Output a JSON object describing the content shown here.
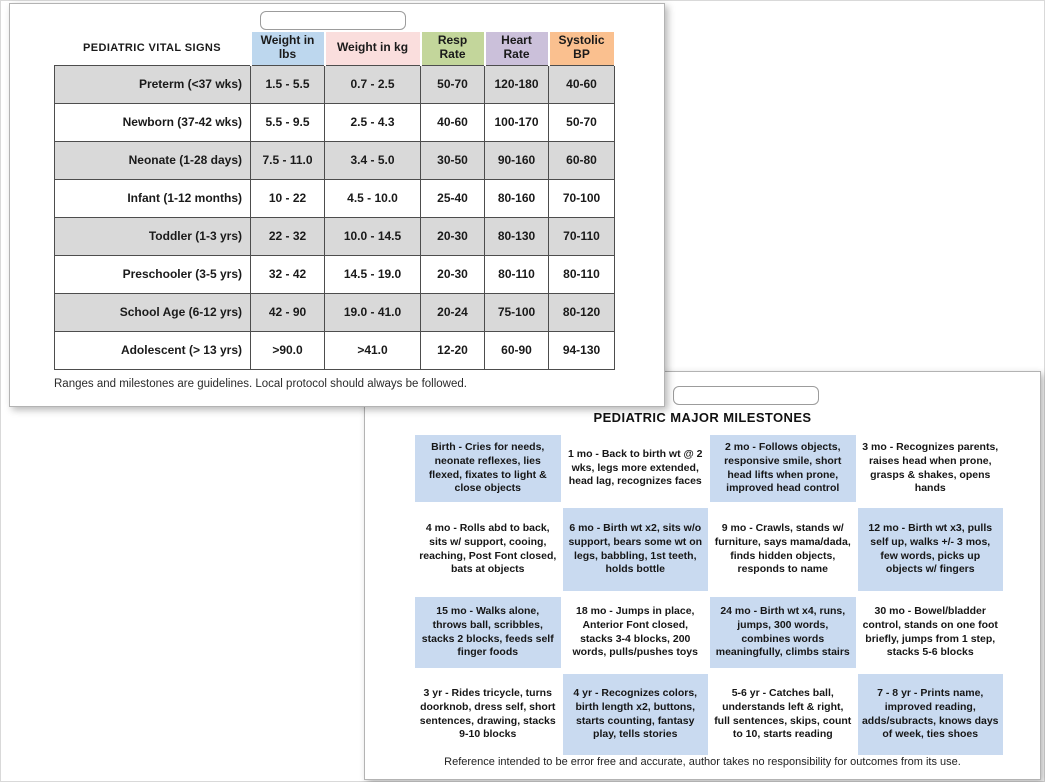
{
  "colors": {
    "header_blue": "#bdd7ee",
    "header_pink": "#fadedd",
    "header_green": "#c3d69b",
    "header_purple": "#cbc0da",
    "header_orange": "#fac08f",
    "row_gray": "#d9d9d9",
    "milestone_blue": "#c9daf0",
    "table_border": "#4d4d4d"
  },
  "vital_signs_card": {
    "field_value": "",
    "table": {
      "title": "PEDIATRIC VITAL SIGNS",
      "columns": [
        {
          "label": "Weight in lbs",
          "color": "#bdd7ee"
        },
        {
          "label": "Weight in kg",
          "color": "#fadedd"
        },
        {
          "label": "Resp Rate",
          "color": "#c3d69b"
        },
        {
          "label": "Heart Rate",
          "color": "#cbc0da"
        },
        {
          "label": "Systolic BP",
          "color": "#fac08f"
        }
      ],
      "rows": [
        {
          "label": "Preterm (<37 wks)",
          "shaded": true,
          "values": [
            "1.5 - 5.5",
            "0.7 - 2.5",
            "50-70",
            "120-180",
            "40-60"
          ]
        },
        {
          "label": "Newborn (37-42 wks)",
          "shaded": false,
          "values": [
            "5.5 - 9.5",
            "2.5 - 4.3",
            "40-60",
            "100-170",
            "50-70"
          ]
        },
        {
          "label": "Neonate (1-28 days)",
          "shaded": true,
          "values": [
            "7.5 - 11.0",
            "3.4 - 5.0",
            "30-50",
            "90-160",
            "60-80"
          ]
        },
        {
          "label": "Infant (1-12 months)",
          "shaded": false,
          "values": [
            "10 - 22",
            "4.5 - 10.0",
            "25-40",
            "80-160",
            "70-100"
          ]
        },
        {
          "label": "Toddler (1-3 yrs)",
          "shaded": true,
          "values": [
            "22 - 32",
            "10.0 - 14.5",
            "20-30",
            "80-130",
            "70-110"
          ]
        },
        {
          "label": "Preschooler (3-5 yrs)",
          "shaded": false,
          "values": [
            "32 - 42",
            "14.5 - 19.0",
            "20-30",
            "80-110",
            "80-110"
          ]
        },
        {
          "label": "School Age (6-12 yrs)",
          "shaded": true,
          "values": [
            "42 - 90",
            "19.0 - 41.0",
            "20-24",
            "75-100",
            "80-120"
          ]
        },
        {
          "label": "Adolescent (> 13 yrs)",
          "shaded": false,
          "values": [
            ">90.0",
            ">41.0",
            "12-20",
            "60-90",
            "94-130"
          ]
        }
      ]
    },
    "footnote": "Ranges and milestones are guidelines. Local protocol should always be followed."
  },
  "milestones_card": {
    "field_value": "",
    "title": "PEDIATRIC MAJOR MILESTONES",
    "cells": [
      {
        "text": "Birth - Cries for needs, neonate reflexes, lies flexed, fixates to light & close objects",
        "highlighted": true
      },
      {
        "text": "1 mo - Back to birth wt @ 2 wks, legs more extended, head lag, recognizes faces",
        "highlighted": false
      },
      {
        "text": "2 mo - Follows objects, responsive smile, short head lifts when prone, improved head control",
        "highlighted": true
      },
      {
        "text": "3 mo - Recognizes parents, raises head when prone, grasps & shakes, opens hands",
        "highlighted": false
      },
      {
        "text": "4 mo - Rolls abd to back, sits w/ support, cooing, reaching, Post Font closed, bats at objects",
        "highlighted": false
      },
      {
        "text": "6 mo - Birth wt x2, sits w/o support, bears some wt on legs, babbling, 1st teeth, holds bottle",
        "highlighted": true
      },
      {
        "text": "9 mo - Crawls, stands w/ furniture, says mama/dada, finds hidden objects, responds to name",
        "highlighted": false
      },
      {
        "text": "12 mo - Birth wt x3, pulls self up, walks +/- 3 mos, few words, picks up objects w/ fingers",
        "highlighted": true
      },
      {
        "text": "15 mo - Walks alone, throws ball, scribbles, stacks 2 blocks, feeds self finger foods",
        "highlighted": true
      },
      {
        "text": "18 mo - Jumps in place, Anterior Font closed, stacks 3-4 blocks, 200 words, pulls/pushes toys",
        "highlighted": false
      },
      {
        "text": "24 mo - Birth wt x4, runs, jumps, 300 words, combines words meaningfully, climbs stairs",
        "highlighted": true
      },
      {
        "text": "30 mo - Bowel/bladder control, stands on one foot briefly, jumps from 1 step, stacks 5-6 blocks",
        "highlighted": false
      },
      {
        "text": "3 yr - Rides tricycle, turns doorknob, dress self, short sentences, drawing, stacks 9-10 blocks",
        "highlighted": false
      },
      {
        "text": "4 yr - Recognizes colors, birth length x2, buttons, starts counting, fantasy play, tells stories",
        "highlighted": true
      },
      {
        "text": "5-6 yr - Catches ball, understands left & right, full sentences, skips, count to 10, starts reading",
        "highlighted": false
      },
      {
        "text": "7 - 8 yr - Prints name, improved reading, adds/subracts, knows days of week, ties shoes",
        "highlighted": true
      }
    ],
    "footnote": "Reference intended to be error free and accurate, author takes no responsibility for outcomes from its use."
  }
}
